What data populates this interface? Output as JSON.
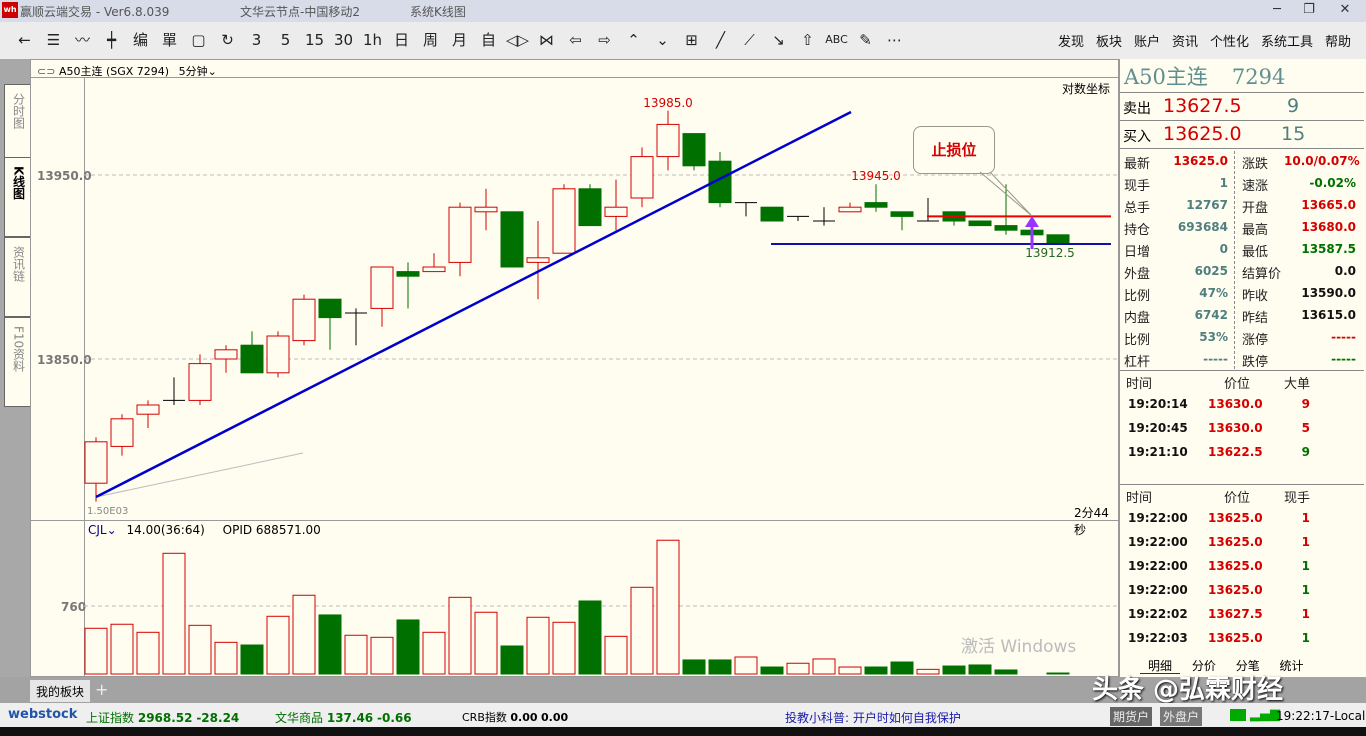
{
  "titlebar": {
    "app": "赢顺云端交易  -  Ver6.8.039",
    "node": "文华云节点-中国移动2",
    "view": "系统K线图",
    "minimize": "─",
    "restore": "❐",
    "close": "✕"
  },
  "toolbar": {
    "icons": [
      "←",
      "☰",
      "〰",
      "┿",
      "编",
      "單",
      "▢",
      "↻"
    ],
    "icon_names": [
      "back-icon",
      "list-icon",
      "line-chart-icon",
      "candle-icon",
      "edit-icon",
      "grid-icon",
      "save-icon",
      "refresh-icon"
    ],
    "periods": [
      "3",
      "5",
      "15",
      "30",
      "1h",
      "日",
      "周",
      "月",
      "自"
    ],
    "tools": [
      "◁▷",
      "⋈",
      "⇦",
      "⇨",
      "⌃",
      "⌄",
      "⊞",
      "╱",
      "⟋",
      "↘",
      "⇧",
      "ABC",
      "✎",
      "⋯"
    ],
    "menus": [
      "发现",
      "板块",
      "账户",
      "资讯",
      "个性化",
      "系统工具",
      "帮助"
    ]
  },
  "sidetabs": [
    "分时图",
    "K线图",
    "资讯链",
    "F10资料"
  ],
  "chart_header": {
    "symbol": "A50主连 (SGX 7294)",
    "period": "5分钟"
  },
  "log_scale_label": "对数坐标",
  "countdown": "2分44秒",
  "volume_header": {
    "indicator": "CJL",
    "value": "14.00(36:64)",
    "opid": "OPID 688571.00"
  },
  "bottom_left_label": "1.50E03",
  "chart_data": {
    "type": "candlestick",
    "yticks": [
      "13950.0",
      "13850.0"
    ],
    "ytick_values": [
      13950,
      13850
    ],
    "labels": {
      "high": "13985.0",
      "local_high": "13945.0",
      "low": "13912.5"
    },
    "callout": "止损位",
    "levels": {
      "support": 13912.5,
      "stop_loss": 13927.5
    },
    "colors": {
      "up": "#d40000",
      "down": "#007000",
      "trend": "#0000cc",
      "stop": "#ee0000",
      "arrow": "#9933ff"
    },
    "ohlc": [
      [
        13782.5,
        13807.5,
        13772.5,
        13805
      ],
      [
        13802.5,
        13820,
        13797.5,
        13817.5
      ],
      [
        13820,
        13827.5,
        13812.5,
        13825
      ],
      [
        13827.5,
        13840,
        13825,
        13827.5
      ],
      [
        13827.5,
        13852.5,
        13825,
        13847.5
      ],
      [
        13850,
        13857.5,
        13842.5,
        13855
      ],
      [
        13857.5,
        13865,
        13842.5,
        13842.5
      ],
      [
        13842.5,
        13865,
        13840,
        13862.5
      ],
      [
        13860,
        13885,
        13857.5,
        13882.5
      ],
      [
        13882.5,
        13882.5,
        13855,
        13872.5
      ],
      [
        13875,
        13877.5,
        13857.5,
        13875
      ],
      [
        13877.5,
        13900,
        13867.5,
        13900
      ],
      [
        13897.5,
        13902.5,
        13877.5,
        13895
      ],
      [
        13897.5,
        13907.5,
        13897.5,
        13900
      ],
      [
        13902.5,
        13935,
        13895,
        13932.5
      ],
      [
        13930,
        13942.5,
        13920,
        13932.5
      ],
      [
        13930,
        13930,
        13900,
        13900
      ],
      [
        13902.5,
        13925,
        13882.5,
        13905
      ],
      [
        13907.5,
        13945,
        13907.5,
        13942.5
      ],
      [
        13942.5,
        13945,
        13922.5,
        13922.5
      ],
      [
        13927.5,
        13947.5,
        13920,
        13932.5
      ],
      [
        13937.5,
        13965,
        13932.5,
        13960
      ],
      [
        13960,
        13985,
        13952.5,
        13977.5
      ],
      [
        13972.5,
        13972.5,
        13952.5,
        13955
      ],
      [
        13957.5,
        13962.5,
        13932.5,
        13935
      ],
      [
        13935,
        13935,
        13927.5,
        13935
      ],
      [
        13932.5,
        13932.5,
        13925,
        13925
      ],
      [
        13927.5,
        13927.5,
        13925,
        13927.5
      ],
      [
        13925,
        13932.5,
        13922.5,
        13925
      ],
      [
        13930,
        13935,
        13930,
        13932.5
      ],
      [
        13935,
        13945,
        13930,
        13932.5
      ],
      [
        13930,
        13930,
        13920,
        13927.5
      ],
      [
        13925,
        13937.5,
        13925,
        13925
      ],
      [
        13930,
        13930,
        13922.5,
        13925
      ],
      [
        13925,
        13925,
        13922.5,
        13922.5
      ],
      [
        13922.5,
        13945,
        13917.5,
        13920
      ],
      [
        13920,
        13920,
        13917.5,
        13917.5
      ],
      [
        13917.5,
        13917.5,
        13912.5,
        13912.5
      ]
    ],
    "volume_ytick": "760",
    "volume": [
      511,
      556,
      466,
      1349,
      544,
      354,
      324,
      645,
      880,
      660,
      433,
      410,
      604,
      466,
      857,
      690,
      313,
      634,
      578,
      816,
      421,
      969,
      1495,
      157,
      157,
      190,
      78,
      120,
      168,
      78,
      78,
      134,
      52,
      89,
      101,
      45,
      0,
      11
    ]
  },
  "quote": {
    "title": "A50主连",
    "code": "7294",
    "sell_label": "卖出",
    "sell_price": "13627.5",
    "sell_qty": "9",
    "buy_label": "买入",
    "buy_price": "13625.0",
    "buy_qty": "15",
    "left": [
      [
        "最新",
        "13625.0",
        "red"
      ],
      [
        "现手",
        "1",
        "teal"
      ],
      [
        "总手",
        "12767",
        "teal"
      ],
      [
        "持仓",
        "693684",
        "teal"
      ],
      [
        "日增",
        "0",
        "teal"
      ],
      [
        "外盘",
        "6025",
        "teal"
      ],
      [
        "比例",
        "47%",
        "teal"
      ],
      [
        "内盘",
        "6742",
        "teal"
      ],
      [
        "比例",
        "53%",
        "teal"
      ],
      [
        "杠杆",
        "-----",
        "teal"
      ]
    ],
    "right": [
      [
        "涨跌",
        "10.0/0.07%",
        "red"
      ],
      [
        "速涨",
        "-0.02%",
        "green"
      ],
      [
        "开盘",
        "13665.0",
        "red"
      ],
      [
        "最高",
        "13680.0",
        "red"
      ],
      [
        "最低",
        "13587.5",
        "green"
      ],
      [
        "结算价",
        "0.0",
        "blk"
      ],
      [
        "昨收",
        "13590.0",
        "blk"
      ],
      [
        "昨结",
        "13615.0",
        "blk"
      ],
      [
        "涨停",
        "-----",
        "red"
      ],
      [
        "跌停",
        "-----",
        "green"
      ]
    ]
  },
  "big_orders": {
    "headers": [
      "时间",
      "价位",
      "大单"
    ],
    "rows": [
      [
        "19:20:14",
        "13630.0",
        "9",
        "red"
      ],
      [
        "19:20:45",
        "13630.0",
        "5",
        "red"
      ],
      [
        "19:21:10",
        "13622.5",
        "9",
        "green"
      ]
    ]
  },
  "ticks": {
    "headers": [
      "时间",
      "价位",
      "现手"
    ],
    "rows": [
      [
        "19:22:00",
        "13625.0",
        "1",
        "red"
      ],
      [
        "19:22:00",
        "13625.0",
        "1",
        "red"
      ],
      [
        "19:22:00",
        "13625.0",
        "1",
        "green"
      ],
      [
        "19:22:00",
        "13625.0",
        "1",
        "green"
      ],
      [
        "19:22:02",
        "13627.5",
        "1",
        "red"
      ],
      [
        "19:22:03",
        "13625.0",
        "1",
        "green"
      ]
    ]
  },
  "right_tabs": [
    "明细",
    "分价",
    "分笔",
    "统计"
  ],
  "watermark": "激活 Windows",
  "bottom_tabs": {
    "my_block": "我的板块",
    "add": "+"
  },
  "statusbar": {
    "brand": "webstock",
    "sh_label": "上证指数",
    "sh_value": "2968.52",
    "sh_change": "-28.24",
    "wh_label": "文华商品",
    "wh_value": "137.46",
    "wh_change": "-0.66",
    "crb_label": "CRB指数",
    "crb_value": "0.00",
    "crb_change": "0.00",
    "tip": "投教小科普: 开户时如何自我保护",
    "futures_btn": "期货户",
    "foreign_btn": "外盘户",
    "clock": "19:22:17-Local"
  },
  "overlay_watermark": "头条 @弘霖财经"
}
